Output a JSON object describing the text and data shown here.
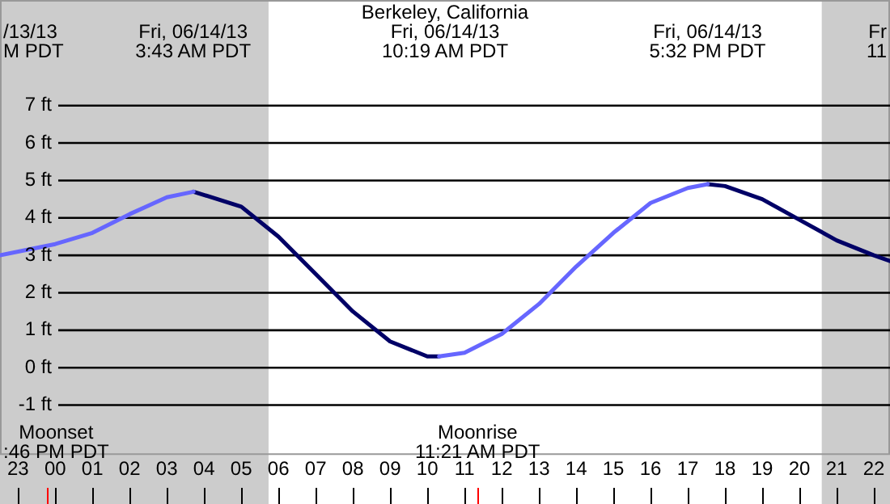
{
  "chart_data": {
    "type": "line",
    "title": "Berkeley, California",
    "x": [
      "--06-13T22:31",
      "--06-14T00:00",
      "--06-14T01:00",
      "--06-14T02:00",
      "--06-14T03:00",
      "--06-14T03:43",
      "--06-14T05:00",
      "--06-14T06:00",
      "--06-14T07:00",
      "--06-14T08:00",
      "--06-14T09:00",
      "--06-14T10:00",
      "--06-14T10:19",
      "--06-14T11:00",
      "--06-14T12:00",
      "--06-14T13:00",
      "--06-14T14:00",
      "--06-14T15:00",
      "--06-14T16:00",
      "--06-14T17:00",
      "--06-14T17:32",
      "--06-14T18:00",
      "--06-14T19:00",
      "--06-14T20:00",
      "--06-14T21:00",
      "--06-14T22:00",
      "--06-14T22:26"
    ],
    "series": [
      {
        "color": "#6666ff",
        "values": [
          3.0,
          3.3,
          3.6,
          4.1,
          4.55,
          4.7,
          null,
          null,
          null,
          null,
          null,
          null,
          0.3,
          0.4,
          0.9,
          1.7,
          2.7,
          3.6,
          4.4,
          4.8,
          4.9,
          null,
          null,
          null,
          null,
          null,
          null
        ]
      },
      {
        "color": "#000066",
        "values": [
          null,
          null,
          null,
          null,
          null,
          4.7,
          4.3,
          3.5,
          2.5,
          1.5,
          0.7,
          0.3,
          0.3,
          null,
          null,
          null,
          null,
          null,
          null,
          null,
          4.9,
          4.85,
          4.5,
          3.95,
          3.4,
          3.0,
          2.85
        ]
      }
    ],
    "xlim": [
      "--06-13T22:31",
      "--06-14T22:26"
    ],
    "xticks": [
      {
        "value": "--06-13T23:00",
        "label": "23"
      },
      {
        "value": "--06-14T00:00",
        "label": "00"
      },
      {
        "value": "--06-14T01:00",
        "label": "01"
      },
      {
        "value": "--06-14T02:00",
        "label": "02"
      },
      {
        "value": "--06-14T03:00",
        "label": "03"
      },
      {
        "value": "--06-14T04:00",
        "label": "04"
      },
      {
        "value": "--06-14T05:00",
        "label": "05"
      },
      {
        "value": "--06-14T06:00",
        "label": "06"
      },
      {
        "value": "--06-14T07:00",
        "label": "07"
      },
      {
        "value": "--06-14T08:00",
        "label": "08"
      },
      {
        "value": "--06-14T09:00",
        "label": "09"
      },
      {
        "value": "--06-14T10:00",
        "label": "10"
      },
      {
        "value": "--06-14T11:00",
        "label": "11"
      },
      {
        "value": "--06-14T12:00",
        "label": "12"
      },
      {
        "value": "--06-14T13:00",
        "label": "13"
      },
      {
        "value": "--06-14T14:00",
        "label": "14"
      },
      {
        "value": "--06-14T15:00",
        "label": "15"
      },
      {
        "value": "--06-14T16:00",
        "label": "16"
      },
      {
        "value": "--06-14T17:00",
        "label": "17"
      },
      {
        "value": "--06-14T18:00",
        "label": "18"
      },
      {
        "value": "--06-14T19:00",
        "label": "19"
      },
      {
        "value": "--06-14T20:00",
        "label": "20"
      },
      {
        "value": "--06-14T21:00",
        "label": "21"
      },
      {
        "value": "--06-14T22:00",
        "label": "22"
      }
    ],
    "ylim": [
      -2.33,
      9.82
    ],
    "yticks": [
      {
        "value": -1,
        "label": "-1 ft"
      },
      {
        "value": 0,
        "label": "0 ft"
      },
      {
        "value": 1,
        "label": "1 ft"
      },
      {
        "value": 2,
        "label": "2 ft"
      },
      {
        "value": 3,
        "label": "3 ft"
      },
      {
        "value": 4,
        "label": "4 ft"
      },
      {
        "value": 5,
        "label": "5 ft"
      },
      {
        "value": 6,
        "label": "6 ft"
      },
      {
        "value": 7,
        "label": "7 ft"
      }
    ],
    "bands": [
      {
        "axis": "x",
        "from": "--06-13T22:31",
        "to": "--06-14T05:44",
        "color": "#cccccc"
      },
      {
        "axis": "x",
        "from": "--06-14T20:36",
        "to": "--06-14T22:26",
        "color": "#cccccc"
      }
    ],
    "ref_lines": [
      {
        "axis": "x",
        "value": "--06-13T23:46",
        "label": "Moonset\n:46 PM PDT",
        "color": "#ff0000"
      },
      {
        "axis": "x",
        "value": "--06-14T11:21",
        "label": "Moonrise\n11:21 AM PDT",
        "color": "#ff0000"
      }
    ],
    "annotations": [
      "/13/13\nM PDT",
      "Fri, 06/14/13\n3:43 AM PDT",
      "Fri, 06/14/13\n10:19 AM PDT",
      "Fri, 06/14/13\n5:32 PM PDT",
      "Fr\n11"
    ],
    "grid": "y",
    "legend": false,
    "marker": "none",
    "line_style": "solid"
  }
}
